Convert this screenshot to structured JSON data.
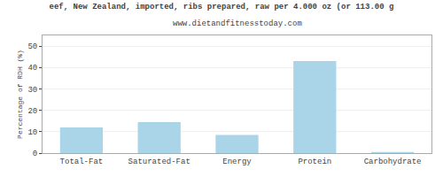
{
  "chart_data": {
    "type": "bar",
    "title": "eef, New Zealand, imported, ribs prepared, raw per 4.000 oz (or 113.00 g",
    "subtitle": "www.dietandfitnesstoday.com",
    "categories": [
      "Total-Fat",
      "Saturated-Fat",
      "Energy",
      "Protein",
      "Carbohydrate"
    ],
    "values": [
      12.0,
      14.5,
      8.5,
      43.0,
      0.5
    ],
    "color": "#aad4e8",
    "ylabel": "Percentage of RDH (%)",
    "ylim": [
      0,
      55
    ],
    "yticks": [
      0,
      10,
      20,
      30,
      40,
      50
    ],
    "grid": true
  }
}
